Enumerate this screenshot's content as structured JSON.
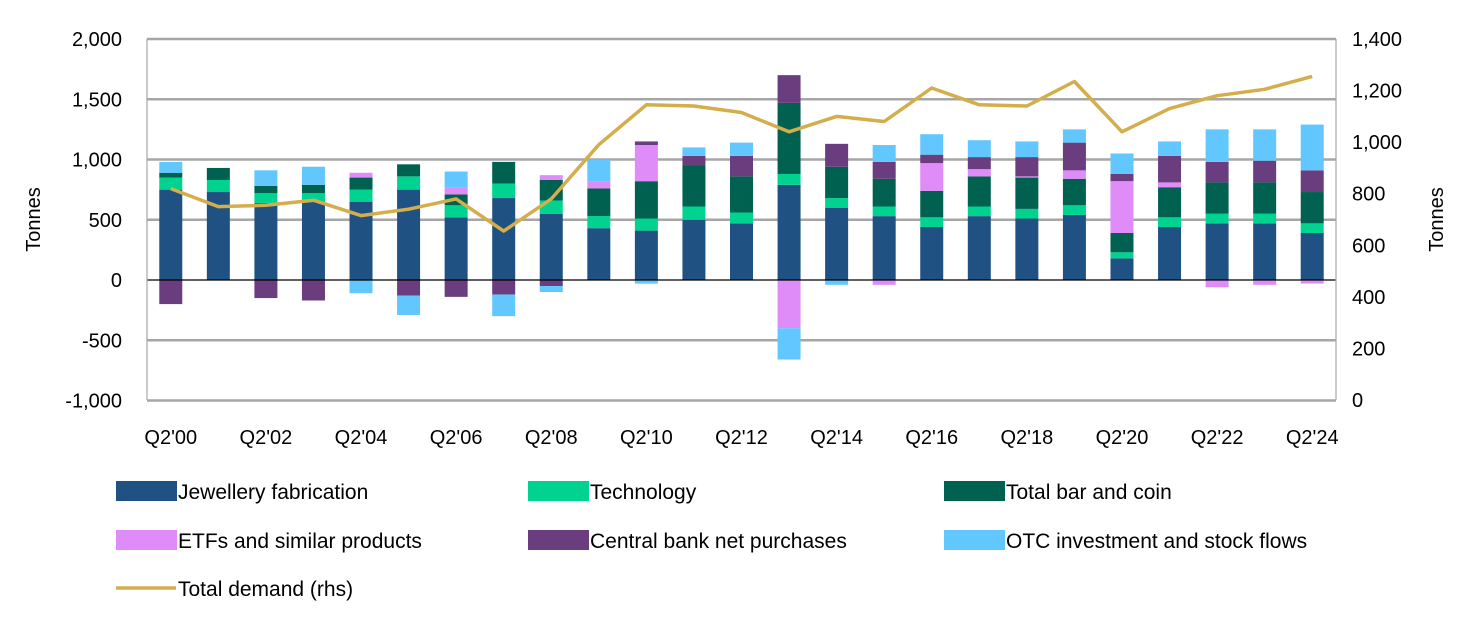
{
  "chart_data": {
    "type": "bar",
    "subtype": "stacked-bar-with-line",
    "title": "",
    "xlabel": "",
    "ylabel": "Tonnes",
    "y2label": "Tonnes",
    "ylim": [
      -1000,
      2000
    ],
    "y2lim": [
      0,
      1400
    ],
    "yticks": [
      "2,000",
      "1,500",
      "1,000",
      "500",
      "0",
      "-500",
      "-1,000"
    ],
    "y2ticks": [
      "1,400",
      "1,200",
      "1,000",
      "800",
      "600",
      "400",
      "200",
      "0"
    ],
    "grid": true,
    "legend_position": "bottom",
    "categories": [
      "Q2'00",
      "Q2'01",
      "Q2'02",
      "Q2'03",
      "Q2'04",
      "Q2'05",
      "Q2'06",
      "Q2'07",
      "Q2'08",
      "Q2'09",
      "Q2'10",
      "Q2'11",
      "Q2'12",
      "Q2'13",
      "Q2'14",
      "Q2'15",
      "Q2'16",
      "Q2'17",
      "Q2'18",
      "Q2'19",
      "Q2'20",
      "Q2'21",
      "Q2'22",
      "Q2'23",
      "Q2'24"
    ],
    "xtick_labels": [
      "Q2'00",
      "",
      "Q2'02",
      "",
      "Q2'04",
      "",
      "Q2'06",
      "",
      "Q2'08",
      "",
      "Q2'10",
      "",
      "Q2'12",
      "",
      "Q2'14",
      "",
      "Q2'16",
      "",
      "Q2'18",
      "",
      "Q2'20",
      "",
      "Q2'22",
      "",
      "Q2'24"
    ],
    "series": [
      {
        "name": "Jewellery fabrication",
        "color": "#1f5282",
        "values": [
          750,
          730,
          640,
          650,
          650,
          750,
          520,
          680,
          550,
          430,
          410,
          500,
          470,
          790,
          600,
          530,
          440,
          530,
          510,
          540,
          180,
          440,
          470,
          470,
          390
        ]
      },
      {
        "name": "Technology",
        "color": "#00d390",
        "values": [
          100,
          100,
          80,
          70,
          100,
          110,
          100,
          120,
          110,
          100,
          100,
          110,
          90,
          90,
          80,
          80,
          80,
          80,
          80,
          80,
          50,
          80,
          80,
          80,
          80
        ]
      },
      {
        "name": "Total bar and coin",
        "color": "#006150",
        "values": [
          40,
          100,
          60,
          70,
          100,
          100,
          90,
          180,
          170,
          230,
          310,
          340,
          300,
          590,
          260,
          230,
          220,
          250,
          260,
          220,
          160,
          250,
          260,
          260,
          260
        ]
      },
      {
        "name": "ETFs and similar products",
        "color": "#df8bf8",
        "values": [
          0,
          0,
          0,
          0,
          40,
          0,
          60,
          0,
          40,
          60,
          300,
          0,
          0,
          -400,
          0,
          -40,
          230,
          60,
          10,
          70,
          430,
          40,
          -60,
          -40,
          -30
        ]
      },
      {
        "name": "Central bank net purchases",
        "color": "#6a3d7e",
        "values": [
          -200,
          0,
          -150,
          -170,
          0,
          -130,
          -140,
          -120,
          -50,
          0,
          30,
          80,
          170,
          230,
          190,
          140,
          70,
          100,
          160,
          230,
          60,
          220,
          170,
          180,
          180
        ]
      },
      {
        "name": "OTC investment and stock flows",
        "color": "#62c7ff",
        "values": [
          90,
          0,
          130,
          150,
          -110,
          -160,
          130,
          -180,
          -50,
          180,
          -30,
          70,
          110,
          -260,
          -40,
          140,
          170,
          140,
          130,
          110,
          170,
          120,
          270,
          260,
          380
        ]
      },
      {
        "name": "Total demand (rhs)",
        "color": "#d4ae4c",
        "type": "line",
        "axis": "right",
        "values": [
          820,
          750,
          755,
          775,
          715,
          740,
          780,
          655,
          780,
          990,
          1145,
          1140,
          1115,
          1040,
          1100,
          1080,
          1210,
          1145,
          1140,
          1235,
          1040,
          1130,
          1180,
          1205,
          1255
        ]
      }
    ]
  }
}
